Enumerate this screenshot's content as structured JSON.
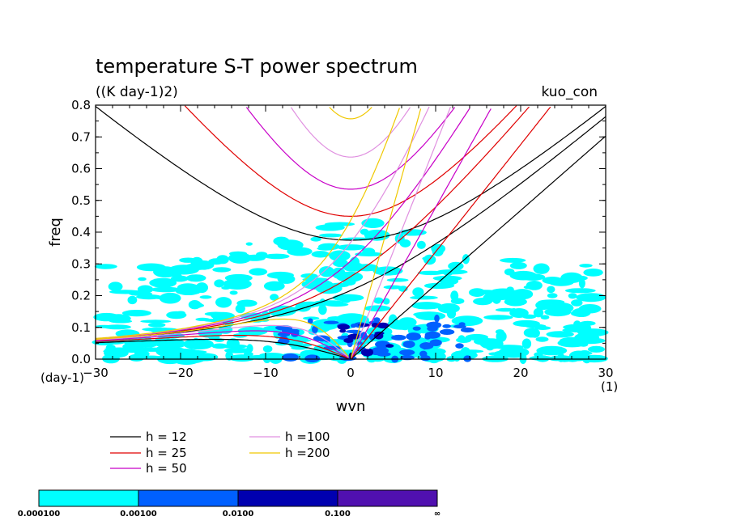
{
  "chart_data": {
    "type": "contour",
    "title": "temperature S-T power spectrum",
    "units": "((K day-1)2)",
    "label_right": "kuo_con",
    "xlabel": "wvn",
    "ylabel": "freq",
    "x_unit": "(1)",
    "y_unit": "(day-1)",
    "xlim": [
      -30,
      30
    ],
    "ylim": [
      0,
      0.8
    ],
    "xticks": [
      -30,
      -20,
      -10,
      0,
      10,
      20,
      30
    ],
    "yticks": [
      0.0,
      0.1,
      0.2,
      0.3,
      0.4,
      0.5,
      0.6,
      0.7,
      0.8
    ],
    "xtick_labels": [
      "−30",
      "−20",
      "−10",
      "0",
      "10",
      "20",
      "30"
    ],
    "ytick_labels": [
      "0.0",
      "0.1",
      "0.2",
      "0.3",
      "0.4",
      "0.5",
      "0.6",
      "0.7",
      "0.8"
    ],
    "dispersion_curves": [
      {
        "label": "h = 12",
        "h": 12,
        "color": "#000000"
      },
      {
        "label": "h = 25",
        "h": 25,
        "color": "#e00000"
      },
      {
        "label": "h = 50",
        "h": 50,
        "color": "#c800c8"
      },
      {
        "label": "h =100",
        "h": 100,
        "color": "#e090e0"
      },
      {
        "label": "h =200",
        "h": 200,
        "color": "#f0c800"
      }
    ],
    "colorbar": {
      "levels": [
        "0.000100",
        "0.00100",
        "0.0100",
        "0.100",
        "∞"
      ],
      "colors": [
        "#00ffff",
        "#0060ff",
        "#0000b0",
        "#5010b0"
      ]
    }
  }
}
